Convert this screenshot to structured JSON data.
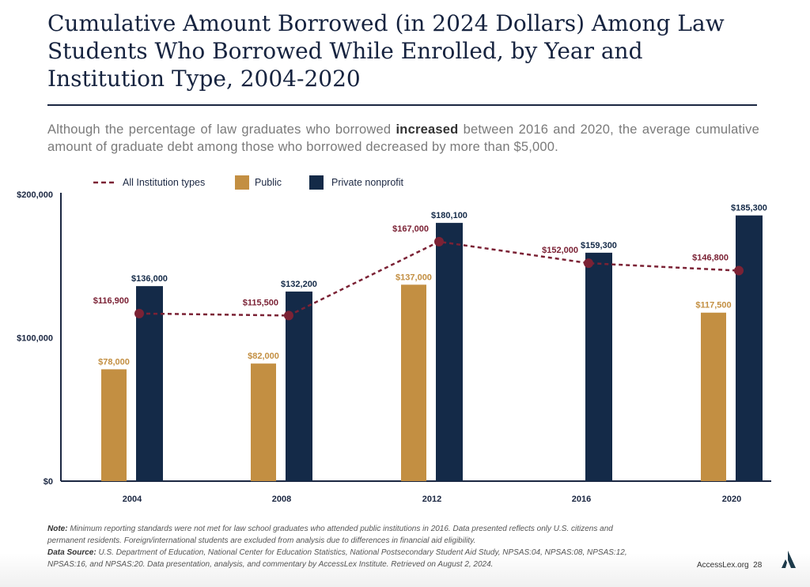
{
  "title": "Cumulative Amount Borrowed (in 2024 Dollars) Among Law Students Who Borrowed While Enrolled, by Year and Institution Type, 2004-2020",
  "subtitle": {
    "before": "Although the percentage of law graduates who borrowed ",
    "bold": "increased",
    "after": " between 2016 and 2020, the average cumulative amount of graduate debt among those who borrowed decreased by more than $5,000."
  },
  "chart_data": {
    "type": "bar",
    "title": "",
    "xlabel": "",
    "ylabel": "",
    "ylim": [
      0,
      200000
    ],
    "yticks": [
      "$0",
      "$100,000",
      "$200,000"
    ],
    "ytick_values": [
      0,
      100000,
      200000
    ],
    "categories": [
      "2004",
      "2008",
      "2012",
      "2016",
      "2020"
    ],
    "legend_position": "top",
    "series": [
      {
        "name": "All Institution types",
        "kind": "line-dashed",
        "color": "#7b2235",
        "values": [
          116900,
          115500,
          167000,
          152000,
          146800
        ],
        "labels": [
          "$116,900",
          "$115,500",
          "$167,000",
          "$152,000",
          "$146,800"
        ]
      },
      {
        "name": "Public",
        "kind": "bar",
        "color": "#c38f42",
        "values": [
          78000,
          82000,
          137000,
          null,
          117500
        ],
        "labels": [
          "$78,000",
          "$82,000",
          "$137,000",
          "",
          "$117,500"
        ]
      },
      {
        "name": "Private nonprofit",
        "kind": "bar",
        "color": "#142a48",
        "values": [
          136000,
          132200,
          180100,
          159300,
          185300
        ],
        "labels": [
          "$136,000",
          "$132,200",
          "$180,100",
          "$159,300",
          "$185,300"
        ]
      }
    ]
  },
  "notes": {
    "note_label": "Note:",
    "note": " Minimum reporting standards were not met for law school graduates who attended public institutions in 2016. Data presented reflects only U.S. citizens and permanent residents. Foreign/international students are excluded from analysis due to differences in financial aid eligibility.",
    "source_label": "Data Source:",
    "source": " U.S. Department of Education, National Center for Education Statistics, National Postsecondary Student Aid Study, NPSAS:04, NPSAS:08, NPSAS:12, NPSAS:16, and NPSAS:20. Data presentation, analysis, and commentary by AccessLex Institute. Retrieved on August 2, 2024."
  },
  "footer": {
    "site": "AccessLex.org",
    "page": "28",
    "logo": "AccessLex logo"
  }
}
